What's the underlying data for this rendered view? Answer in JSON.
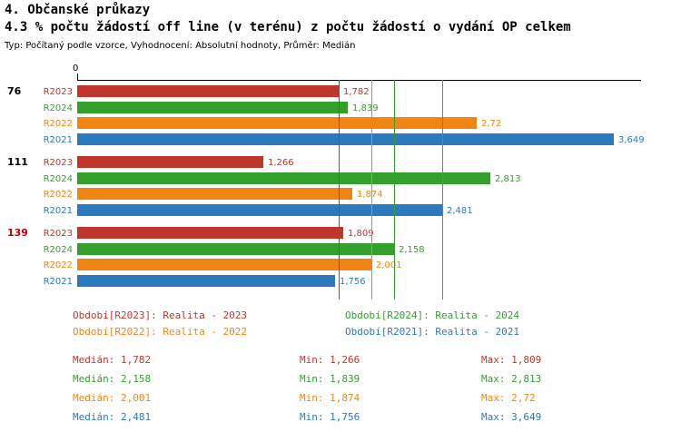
{
  "header": {
    "title": "4. Občanské průkazy",
    "subtitle": "4.3 % počtu žádostí off line (v terénu) z počtu žádostí o vydání OP celkem",
    "meta": "Typ: Počítaný podle vzorce, Vyhodnocení: Absolutní hodnoty, Průměr: Medián"
  },
  "chart_data": {
    "type": "bar",
    "orientation": "horizontal",
    "title": "4.3 % počtu žádostí off line (v terénu) z počtu žádostí o vydání OP celkem",
    "x_axis": {
      "origin_label": "0",
      "max": 3.83,
      "gridlines": false
    },
    "series": [
      {
        "name": "R2023",
        "color": "#C0362C",
        "legend": "Období[R2023]: Realita - 2023"
      },
      {
        "name": "R2024",
        "color": "#33A02C",
        "legend": "Období[R2024]: Realita - 2024"
      },
      {
        "name": "R2022",
        "color": "#F08514",
        "legend": "Období[R2022]: Realita - 2022"
      },
      {
        "name": "R2021",
        "color": "#2D79C0",
        "legend": "Období[R2021]: Realita - 2021"
      }
    ],
    "groups": [
      {
        "label": "76",
        "label_color": "#000000",
        "bars": [
          {
            "series": "R2023",
            "value": 1.782,
            "display": "1,782"
          },
          {
            "series": "R2024",
            "value": 1.839,
            "display": "1,839"
          },
          {
            "series": "R2022",
            "value": 2.72,
            "display": "2,72"
          },
          {
            "series": "R2021",
            "value": 3.649,
            "display": "3,649"
          }
        ]
      },
      {
        "label": "111",
        "label_color": "#000000",
        "bars": [
          {
            "series": "R2023",
            "value": 1.266,
            "display": "1,266"
          },
          {
            "series": "R2024",
            "value": 2.813,
            "display": "2,813"
          },
          {
            "series": "R2022",
            "value": 1.874,
            "display": "1,874"
          },
          {
            "series": "R2021",
            "value": 2.481,
            "display": "2,481"
          }
        ]
      },
      {
        "label": "139",
        "label_color": "#C00000",
        "bars": [
          {
            "series": "R2023",
            "value": 1.809,
            "display": "1,809"
          },
          {
            "series": "R2024",
            "value": 2.158,
            "display": "2,158"
          },
          {
            "series": "R2022",
            "value": 2.001,
            "display": "2,001"
          },
          {
            "series": "R2021",
            "value": 1.756,
            "display": "1,756"
          }
        ]
      }
    ],
    "median_lines": [
      {
        "series": "R2023",
        "value": 1.782,
        "color": "#C0362C"
      },
      {
        "series": "R2022",
        "value": 2.001,
        "color": "#F08514"
      },
      {
        "series": "R2024",
        "value": 2.158,
        "color": "#33A02C"
      },
      {
        "series": "R2021",
        "value": 2.481,
        "color": "#2AA198"
      }
    ]
  },
  "legend": {
    "items": [
      {
        "text": "Období[R2023]: Realita - 2023",
        "color": "#C0362C"
      },
      {
        "text": "Období[R2024]: Realita - 2024",
        "color": "#33A02C"
      },
      {
        "text": "Období[R2022]: Realita - 2022",
        "color": "#F08514"
      },
      {
        "text": "Období[R2021]: Realita - 2021",
        "color": "#2D79C0"
      }
    ]
  },
  "stats": {
    "rows": [
      {
        "color": "#C0362C",
        "median": "Medián: 1,782",
        "min": "Min: 1,266",
        "max": "Max: 1,809"
      },
      {
        "color": "#33A02C",
        "median": "Medián: 2,158",
        "min": "Min: 1,839",
        "max": "Max: 2,813"
      },
      {
        "color": "#F08514",
        "median": "Medián: 2,001",
        "min": "Min: 1,874",
        "max": "Max: 2,72"
      },
      {
        "color": "#2D79C0",
        "median": "Medián: 2,481",
        "min": "Min: 1,756",
        "max": "Max: 3,649"
      }
    ]
  }
}
